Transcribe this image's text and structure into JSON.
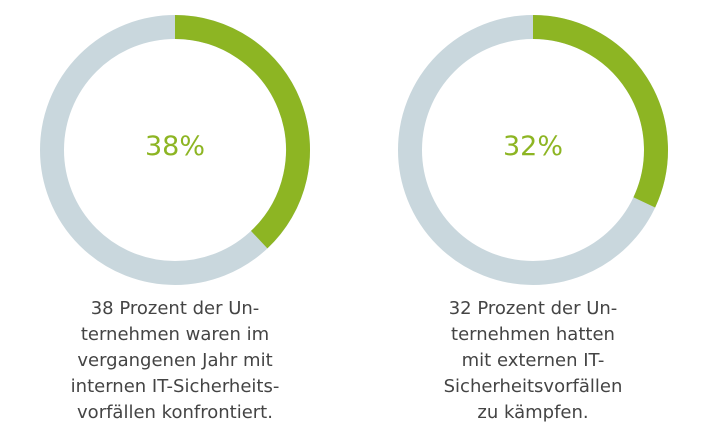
{
  "chart_data": [
    {
      "type": "pie",
      "values": [
        38,
        62
      ],
      "data_label": "38%",
      "caption_lines": [
        "38 Prozent der Un-",
        "ternehmen waren im",
        "vergangenen Jahr mit",
        "internen IT-Sicherheits-",
        "vorfällen konfrontiert."
      ]
    },
    {
      "type": "pie",
      "values": [
        32,
        68
      ],
      "data_label": "32%",
      "caption_lines": [
        "32 Prozent der Un-",
        "ternehmen hatten",
        "mit externen IT-",
        "Sicherheitsvorfällen",
        "zu kämpfen."
      ]
    }
  ],
  "colors": {
    "highlight": "#8db523",
    "track": "#c9d7dd",
    "text": "#444444"
  }
}
